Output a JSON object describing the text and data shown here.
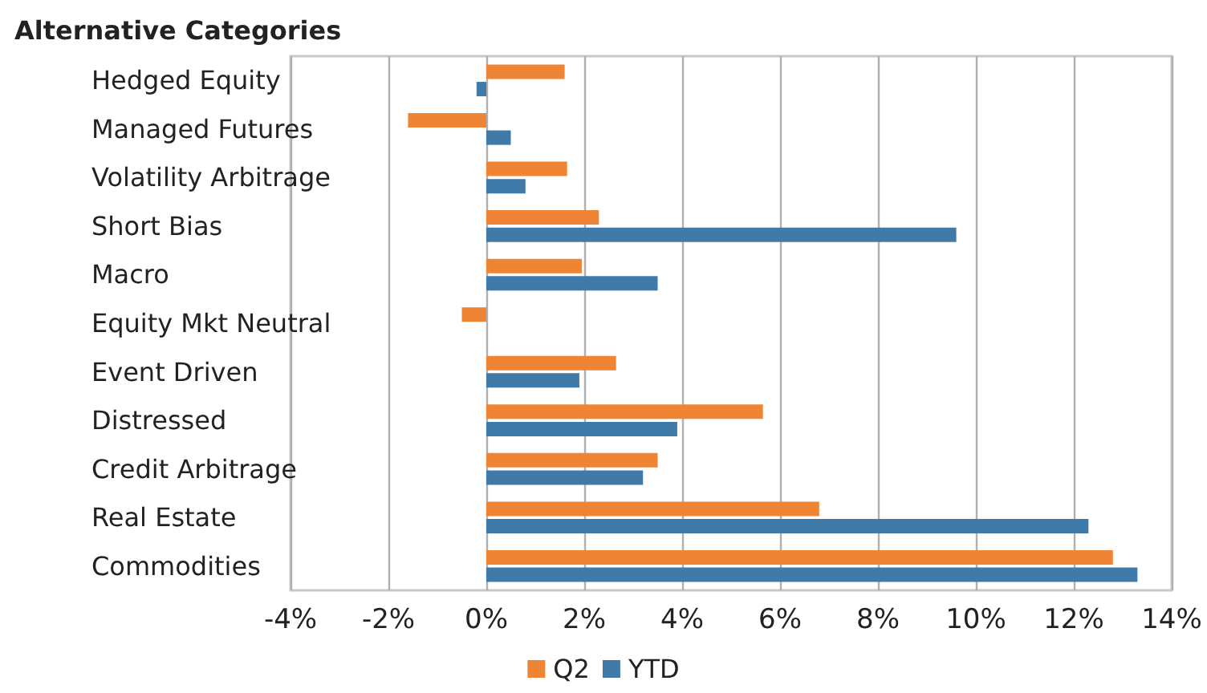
{
  "chart_data": {
    "type": "bar",
    "orientation": "horizontal",
    "title": "Alternative Categories",
    "categories": [
      "Hedged Equity",
      "Managed Futures",
      "Volatility Arbitrage",
      "Short Bias",
      "Macro",
      "Equity Mkt Neutral",
      "Event Driven",
      "Distressed",
      "Credit Arbitrage",
      "Real Estate",
      "Commodities"
    ],
    "series": [
      {
        "name": "Q2",
        "color": "#ee8434",
        "values": [
          1.6,
          -1.6,
          1.65,
          2.3,
          1.95,
          -0.5,
          2.65,
          5.65,
          3.5,
          6.8,
          12.8
        ]
      },
      {
        "name": "YTD",
        "color": "#3f7aa8",
        "values": [
          -0.2,
          0.5,
          0.8,
          9.6,
          3.5,
          0,
          1.9,
          3.9,
          3.2,
          12.3,
          13.3
        ]
      }
    ],
    "xlim": [
      -4,
      14
    ],
    "xticks": [
      {
        "value": -4,
        "label": "-4%"
      },
      {
        "value": -2,
        "label": "-2%"
      },
      {
        "value": 0,
        "label": "0%"
      },
      {
        "value": 2,
        "label": "2%"
      },
      {
        "value": 4,
        "label": "4%"
      },
      {
        "value": 6,
        "label": "6%"
      },
      {
        "value": 8,
        "label": "8%"
      },
      {
        "value": 10,
        "label": "10%"
      },
      {
        "value": 12,
        "label": "12%"
      },
      {
        "value": 14,
        "label": "14%"
      }
    ],
    "grid": "x",
    "legend": "bottom"
  }
}
